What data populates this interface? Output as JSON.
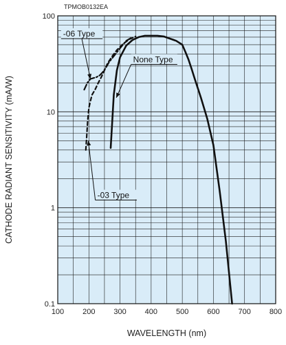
{
  "doc_code": "TPMOB0132EA",
  "chart_data": {
    "type": "line",
    "title": "",
    "xlabel": "WAVELENGTH (nm)",
    "ylabel": "CATHODE RADIANT SENSITIVITY (mA/W)",
    "xlim": [
      100,
      800
    ],
    "ylim": [
      0.1,
      100
    ],
    "yscale": "log",
    "grid": true,
    "background": "#d9ecf8",
    "grid_color": "#1a1a1a",
    "line_color": "#111111",
    "x_ticks": [
      "100",
      "200",
      "300",
      "400",
      "500",
      "600",
      "700",
      "800"
    ],
    "y_ticks": [
      "0.1",
      "1",
      "10",
      "100"
    ],
    "series": [
      {
        "name": "None Type",
        "style": "solid",
        "x": [
          270,
          275,
          280,
          290,
          300,
          320,
          340,
          360,
          380,
          400,
          420,
          440,
          460,
          480,
          500,
          510,
          520,
          530,
          540,
          560,
          580,
          600,
          620,
          640,
          660
        ],
        "y": [
          4.2,
          8,
          15,
          27,
          37,
          49,
          56,
          60,
          62,
          62,
          62,
          61,
          58,
          55,
          50,
          42,
          35,
          28,
          22,
          14,
          8.5,
          4.5,
          1.5,
          0.45,
          0.1
        ]
      },
      {
        "name": "-06 Type",
        "style": "dashdot",
        "x": [
          185,
          195,
          205,
          215,
          225,
          235,
          245,
          255,
          265,
          280,
          300,
          320,
          340
        ],
        "y": [
          17,
          20,
          22,
          22.5,
          23,
          24,
          26,
          29,
          33,
          38,
          46,
          55,
          60
        ]
      },
      {
        "name": "-03 Type",
        "style": "dashed",
        "x": [
          190,
          193,
          196,
          200,
          205,
          210,
          220,
          230,
          240,
          250,
          260,
          275,
          290,
          310,
          330,
          350
        ],
        "y": [
          4,
          5.5,
          8,
          11,
          13,
          15,
          17,
          20,
          23,
          27,
          32,
          38,
          44,
          51,
          57,
          61
        ]
      }
    ],
    "annotations": [
      {
        "text": "-06 Type",
        "target_x": 205,
        "target_y": 22,
        "label_x": 115,
        "label_y": 65
      },
      {
        "text": "None Type",
        "target_x": 288,
        "target_y": 14,
        "label_x": 340,
        "label_y": 35
      },
      {
        "text": "-03 Type",
        "target_x": 198,
        "target_y": 5,
        "label_x": 225,
        "label_y": 1.35
      }
    ]
  }
}
